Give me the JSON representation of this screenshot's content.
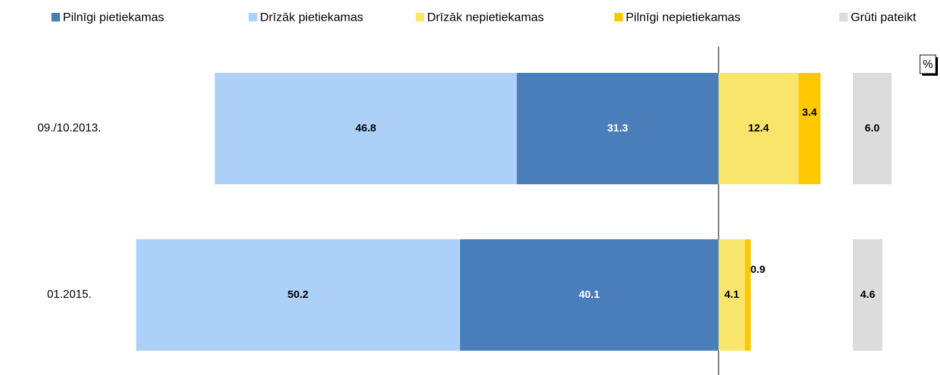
{
  "chart_data": {
    "type": "diverging_stacked_bar",
    "unit_label": "%",
    "categories": [
      "09./10.2013.",
      "01.2015."
    ],
    "series": [
      {
        "name": "Pilnīgi pietiekamas",
        "color": "#4a7ebb",
        "label_color": "#ffffff",
        "side": "left",
        "values": [
          31.3,
          40.1
        ]
      },
      {
        "name": "Drīzāk pietiekamas",
        "color": "#add0f8",
        "label_color": "#000000",
        "side": "left",
        "values": [
          46.8,
          50.2
        ]
      },
      {
        "name": "Drīzāk nepietiekamas",
        "color": "#fae56c",
        "label_color": "#000000",
        "side": "right",
        "values": [
          12.4,
          4.1
        ]
      },
      {
        "name": "Pilnīgi nepietiekamas",
        "color": "#ffc800",
        "label_color": "#000000",
        "side": "right",
        "values": [
          3.4,
          0.9
        ]
      },
      {
        "name": "Grūti pateikt",
        "color": "#dcdcdc",
        "label_color": "#000000",
        "side": "separate",
        "values": [
          6,
          4.6
        ],
        "value_labels": [
          "6.0",
          "4.6"
        ]
      }
    ]
  }
}
